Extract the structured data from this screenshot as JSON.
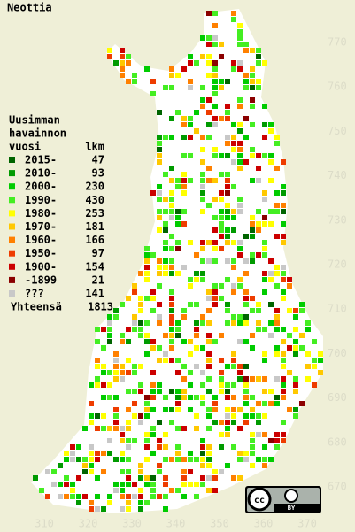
{
  "title": "Neottia",
  "legend": {
    "heading": [
      "Uusimman",
      "havainnon",
      "vuosi"
    ],
    "count_heading": "lkm",
    "items": [
      {
        "label": "2015-",
        "count": 47,
        "color": "#006400"
      },
      {
        "label": "2010-",
        "count": 93,
        "color": "#009a00"
      },
      {
        "label": "2000-",
        "count": 230,
        "color": "#00cc00"
      },
      {
        "label": "1990-",
        "count": 430,
        "color": "#44ee22"
      },
      {
        "label": "1980-",
        "count": 253,
        "color": "#ffff00"
      },
      {
        "label": "1970-",
        "count": 181,
        "color": "#ffc800"
      },
      {
        "label": "1960-",
        "count": 166,
        "color": "#ff8000"
      },
      {
        "label": "1950-",
        "count": 97,
        "color": "#ee3c00"
      },
      {
        "label": "1900-",
        "count": 154,
        "color": "#cc0000"
      },
      {
        "label": "-1899",
        "count": 21,
        "color": "#8b0000"
      },
      {
        "label": "???",
        "count": 141,
        "color": "#c8c8c8"
      }
    ],
    "total": {
      "label": "Yhteensä",
      "count": 1813
    }
  },
  "x_ticks": [
    310,
    320,
    330,
    340,
    350,
    360,
    370
  ],
  "y_ticks": [
    770,
    760,
    750,
    740,
    730,
    720,
    710,
    700,
    690,
    680,
    670
  ],
  "license": {
    "icon": "cc",
    "label": "BY"
  }
}
